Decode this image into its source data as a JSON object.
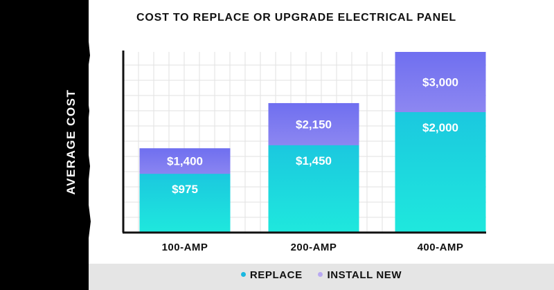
{
  "chart_data": {
    "type": "bar",
    "stacked": true,
    "title": "COST TO REPLACE OR UPGRADE ELECTRICAL PANEL",
    "ylabel": "AVERAGE COST",
    "xlabel": "",
    "categories": [
      "100-AMP",
      "200-AMP",
      "400-AMP"
    ],
    "series": [
      {
        "name": "REPLACE",
        "values": [
          975,
          1450,
          2000
        ],
        "labels": [
          "$975",
          "$1,450",
          "$2,000"
        ],
        "color": "#1bc8df"
      },
      {
        "name": "INSTALL NEW",
        "values": [
          1400,
          2150,
          3000
        ],
        "labels": [
          "$1,400",
          "$2,150",
          "$3,000"
        ],
        "color": "#9b8ef2"
      }
    ],
    "grid": true,
    "legend": "bottom"
  },
  "colors": {
    "replace_top": "#1bc8df",
    "replace_bottom": "#1fe8dd",
    "install_top": "#6f6ff0",
    "install_bottom": "#c9b7f3",
    "axis": "#111111",
    "grid": "#e2e2e2",
    "left_band": "#000000",
    "legend_band": "#e5e5e5",
    "legend_replace_dot": "#1bb8e0",
    "legend_install_dot": "#b9a9f3"
  }
}
